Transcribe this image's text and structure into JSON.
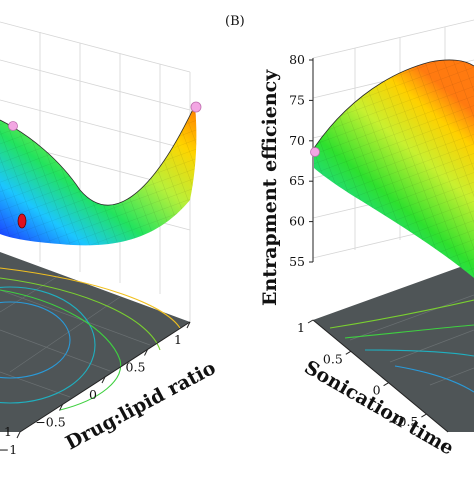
{
  "chart_data": [
    {
      "type": "surface",
      "panel": "",
      "xlabel": "Drug:lipid ratio",
      "ylabel": "",
      "zlabel": "",
      "x_ticks": [
        "1",
        "0.5",
        "0",
        "−0.5",
        "−1"
      ],
      "y_ticks": [
        "1"
      ],
      "z_ticks": [],
      "markers": [
        "pink design point (upper left)",
        "pink design point (upper right)",
        "red design point (centre)"
      ],
      "grid": true
    },
    {
      "type": "surface",
      "panel": "(B)",
      "xlabel": "Sonication time",
      "ylabel": "",
      "zlabel": "Entrapment efficiency",
      "x_ticks": [
        "1",
        "0.5",
        "0",
        "−0.5"
      ],
      "z_ticks": [
        "80",
        "75",
        "70",
        "65",
        "60",
        "55"
      ],
      "zlim": [
        55,
        80
      ],
      "markers": [
        "pink design point at z ≈ 69.5"
      ],
      "grid": true
    }
  ],
  "colors": {
    "surface_high": "#ff5000",
    "surface_mid_high": "#ffe600",
    "surface_mid": "#2ee02e",
    "surface_mid_low": "#00c8ff",
    "surface_low": "#1030ff",
    "floor": "#4f5557",
    "marker_pink": "#f3a6e3",
    "marker_red": "#e01020"
  }
}
